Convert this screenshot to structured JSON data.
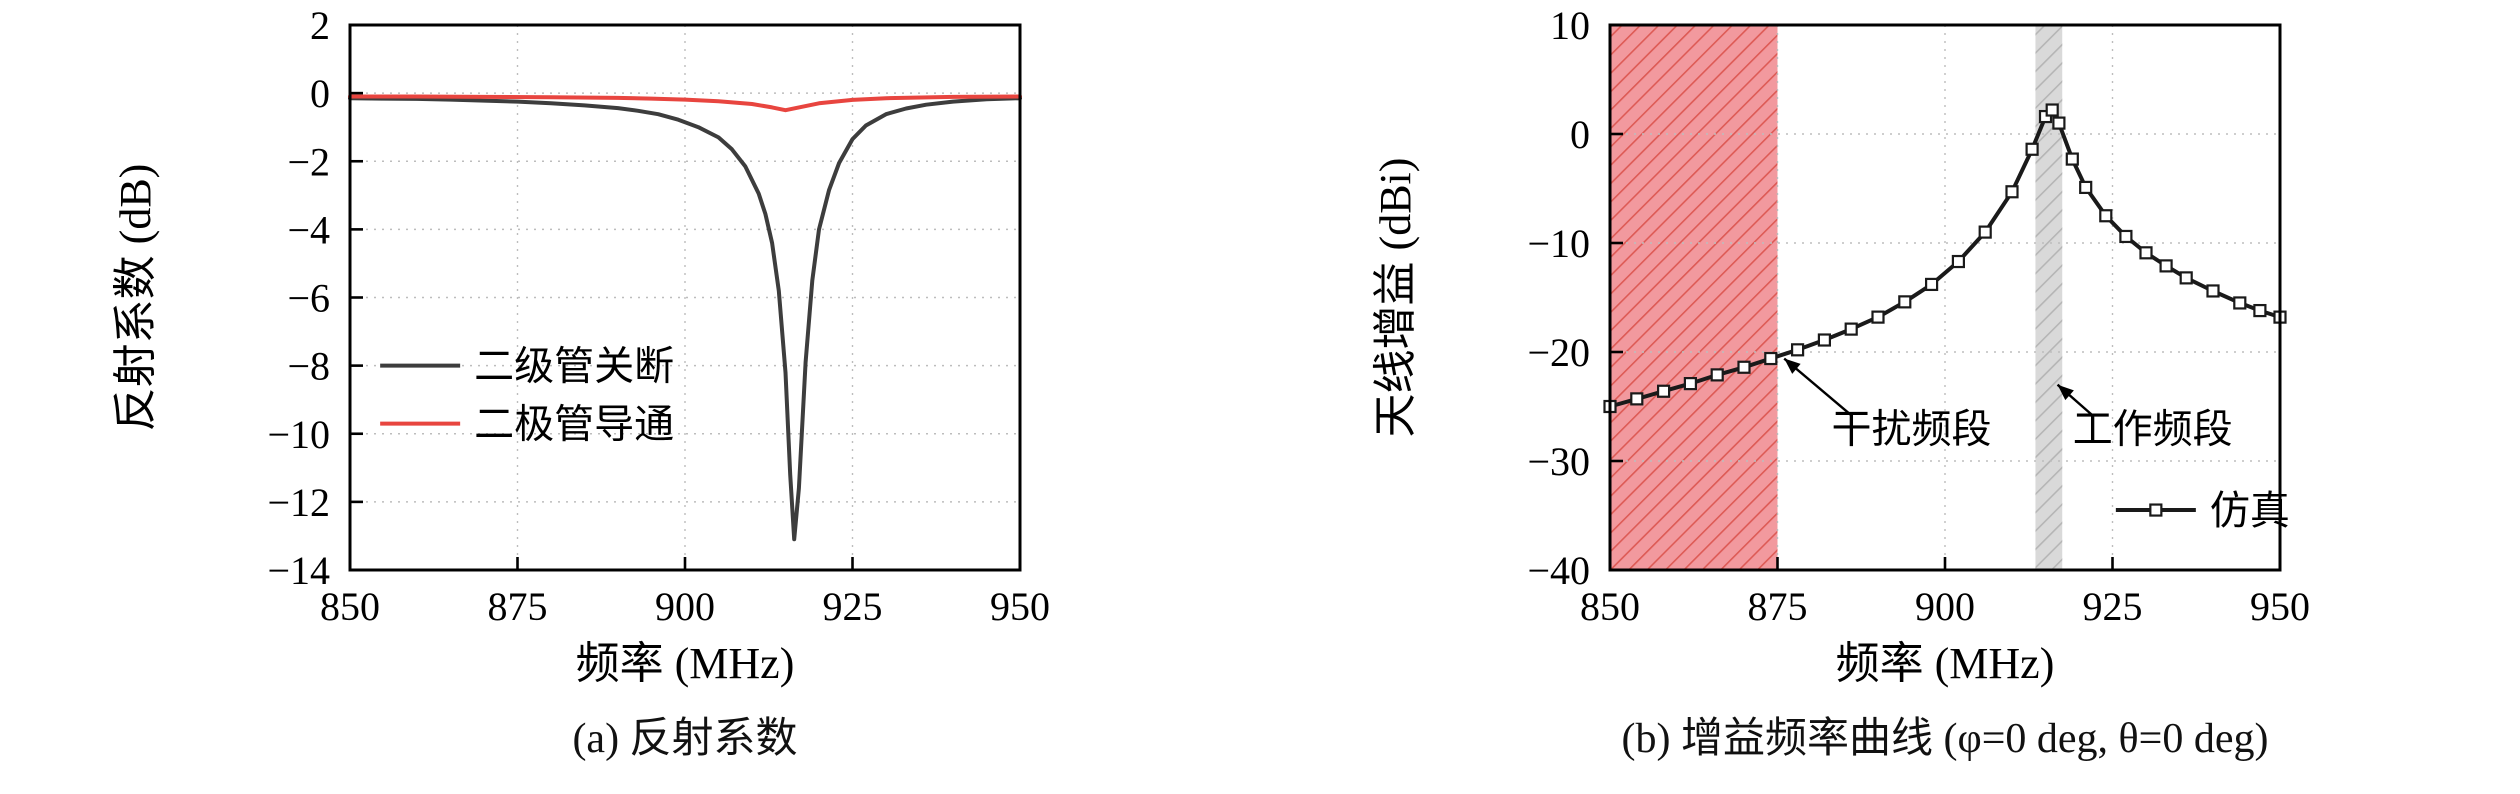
{
  "page": {
    "background": "#ffffff"
  },
  "chart_data": [
    {
      "type": "line",
      "caption": "(a) 反射系数",
      "xlabel": "频率 (MHz)",
      "ylabel": "反射系数 (dB)",
      "xlim": [
        850,
        950
      ],
      "ylim": [
        -14,
        2
      ],
      "xticks": [
        850,
        875,
        900,
        925,
        950
      ],
      "yticks": [
        2,
        0,
        -2,
        -4,
        -6,
        -8,
        -10,
        -12,
        -14
      ],
      "grid": true,
      "legend_position": "center-left",
      "series": [
        {
          "name": "二级管关断",
          "color": "#3d3d3d",
          "x": [
            850,
            855,
            860,
            865,
            870,
            875,
            880,
            885,
            890,
            893,
            896,
            899,
            902,
            905,
            907,
            909,
            911,
            912,
            913,
            914,
            915,
            915.7,
            916.3,
            917,
            918,
            919,
            920,
            921.5,
            923,
            925,
            927,
            930,
            933,
            936,
            940,
            945,
            950
          ],
          "y": [
            -0.15,
            -0.16,
            -0.17,
            -0.19,
            -0.22,
            -0.25,
            -0.3,
            -0.36,
            -0.44,
            -0.52,
            -0.62,
            -0.78,
            -1.0,
            -1.3,
            -1.65,
            -2.15,
            -2.95,
            -3.55,
            -4.4,
            -5.8,
            -8.2,
            -11.2,
            -13.1,
            -11.6,
            -7.9,
            -5.5,
            -4.0,
            -2.85,
            -2.05,
            -1.35,
            -0.95,
            -0.62,
            -0.45,
            -0.34,
            -0.25,
            -0.18,
            -0.15
          ]
        },
        {
          "name": "二极管导通",
          "color": "#e8453f",
          "x": [
            850,
            860,
            870,
            880,
            890,
            895,
            900,
            905,
            910,
            913,
            915,
            917,
            920,
            925,
            930,
            940,
            950
          ],
          "y": [
            -0.1,
            -0.1,
            -0.11,
            -0.12,
            -0.14,
            -0.16,
            -0.19,
            -0.24,
            -0.32,
            -0.42,
            -0.5,
            -0.42,
            -0.3,
            -0.2,
            -0.15,
            -0.11,
            -0.1
          ]
        }
      ]
    },
    {
      "type": "line",
      "caption": "(b) 增益频率曲线 (φ=0 deg, θ=0 deg)",
      "xlabel": "频率 (MHz)",
      "ylabel": "天线增益 (dBi)",
      "xlim": [
        850,
        950
      ],
      "ylim": [
        -40,
        10
      ],
      "xticks": [
        850,
        875,
        900,
        925,
        950
      ],
      "yticks": [
        10,
        0,
        -10,
        -20,
        -30,
        -40
      ],
      "grid": true,
      "legend_position": "bottom-right",
      "bands": [
        {
          "label": "干扰频段",
          "x0": 850,
          "x1": 875,
          "fill": "#f18e93",
          "fill_opacity": 0.9,
          "hatch_color": "#dd5a55"
        },
        {
          "label": "工作频段",
          "x0": 913.5,
          "x1": 917.5,
          "fill": "#d9d9d9",
          "fill_opacity": 1,
          "hatch_color": "#b5b5b5"
        }
      ],
      "annotations": [
        {
          "text": "干扰频段",
          "x": 895,
          "y": -27,
          "arrow": {
            "x1": 886,
            "y1": -25.8,
            "x2": 876,
            "y2": -20.6
          }
        },
        {
          "text": "工作频段",
          "x": 931,
          "y": -27,
          "arrow": {
            "x1": 922,
            "y1": -25.8,
            "x2": 916.8,
            "y2": -23.0
          }
        }
      ],
      "series": [
        {
          "name": "仿真",
          "color": "#1a1a1a",
          "marker": "square",
          "x": [
            850,
            854,
            858,
            862,
            866,
            870,
            874,
            878,
            882,
            886,
            890,
            894,
            898,
            902,
            906,
            910,
            913,
            915,
            916,
            917,
            919,
            921,
            924,
            927,
            930,
            933,
            936,
            940,
            944,
            947,
            950
          ],
          "y": [
            -25.0,
            -24.3,
            -23.6,
            -22.9,
            -22.1,
            -21.4,
            -20.6,
            -19.8,
            -18.9,
            -17.9,
            -16.8,
            -15.4,
            -13.8,
            -11.7,
            -9.0,
            -5.3,
            -1.4,
            1.6,
            2.2,
            1.0,
            -2.3,
            -4.9,
            -7.5,
            -9.4,
            -10.9,
            -12.1,
            -13.2,
            -14.4,
            -15.5,
            -16.2,
            -16.8
          ]
        }
      ]
    }
  ]
}
